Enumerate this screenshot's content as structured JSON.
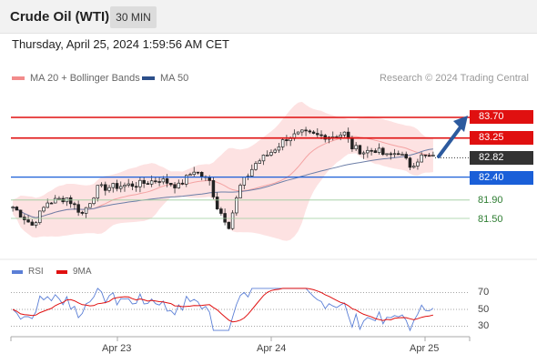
{
  "header": {
    "title": "Crude Oil (WTI)",
    "timeframe": "30 MIN"
  },
  "datetime": "Thursday, April 25, 2024 1:59:56 AM CET",
  "legend": {
    "ma20": {
      "label": "MA 20 + Bollinger Bands",
      "color": "#f28b8b"
    },
    "ma50": {
      "label": "MA 50",
      "color": "#2c4f8a"
    }
  },
  "credit": "Research © 2024 Trading Central",
  "levels": {
    "resistance_2": {
      "value": "83.70",
      "color": "#e01010"
    },
    "resistance_1": {
      "value": "83.25",
      "color": "#e01010"
    },
    "last_price": {
      "value": "82.82",
      "color": "#333333"
    },
    "pivot": {
      "value": "82.40",
      "color": "#1a5fd8"
    },
    "support_1": {
      "value": "81.90",
      "color": "#2e7d32"
    },
    "support_2": {
      "value": "81.50",
      "color": "#2e7d32"
    }
  },
  "x_axis": {
    "labels": [
      "Apr 23",
      "Apr 24",
      "Apr 25"
    ]
  },
  "rsi_panel": {
    "rsi_label": "RSI",
    "rsi_color": "#5b7fd6",
    "ma_label": "9MA",
    "ma_color": "#e01010",
    "ticks": [
      "70",
      "50",
      "30"
    ]
  },
  "chart_data": {
    "type": "candlestick",
    "title": "",
    "ylim": [
      80.5,
      84.5
    ],
    "x_labels": [
      "Apr 23",
      "Apr 24",
      "Apr 25"
    ],
    "horizontal_levels": [
      83.7,
      83.25,
      82.82,
      82.4,
      81.9,
      81.5
    ],
    "bollinger_bands_shown": true,
    "ma50_shown": true,
    "forecast_arrow": {
      "from": 82.85,
      "to": 83.7,
      "direction": "up"
    }
  }
}
